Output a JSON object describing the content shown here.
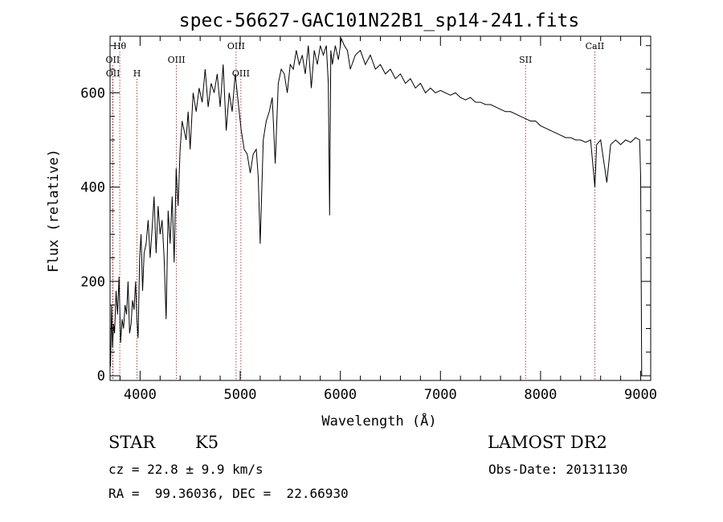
{
  "chart_data": {
    "type": "line",
    "title": "spec-56627-GAC101N22B1_sp14-241.fits",
    "xlabel": "Wavelength (Å)",
    "ylabel": "Flux (relative)",
    "xlim": [
      3700,
      9100
    ],
    "ylim": [
      -10,
      720
    ],
    "xticks": [
      4000,
      5000,
      6000,
      7000,
      8000,
      9000
    ],
    "yticks": [
      0,
      200,
      400,
      600
    ],
    "line_color": "#000000",
    "marker_color": "#8b1a1a",
    "grid": false,
    "series": [
      {
        "x": [
          3705,
          3715,
          3725,
          3735,
          3745,
          3760,
          3775,
          3790,
          3805,
          3820,
          3835,
          3850,
          3865,
          3880,
          3895,
          3910,
          3925,
          3940,
          3955,
          3968,
          3980,
          3995,
          4010,
          4025,
          4040,
          4060,
          4080,
          4100,
          4120,
          4140,
          4160,
          4180,
          4200,
          4220,
          4240,
          4260,
          4280,
          4300,
          4320,
          4340,
          4360,
          4380,
          4400,
          4420,
          4440,
          4460,
          4480,
          4500,
          4530,
          4560,
          4590,
          4620,
          4650,
          4680,
          4710,
          4740,
          4770,
          4800,
          4830,
          4860,
          4890,
          4920,
          4950,
          4980,
          5010,
          5040,
          5070,
          5100,
          5130,
          5160,
          5180,
          5200,
          5230,
          5260,
          5290,
          5320,
          5350,
          5380,
          5410,
          5440,
          5470,
          5500,
          5530,
          5560,
          5590,
          5620,
          5650,
          5680,
          5710,
          5740,
          5770,
          5800,
          5830,
          5860,
          5880,
          5893,
          5905,
          5920,
          5950,
          5980,
          6010,
          6040,
          6070,
          6100,
          6150,
          6200,
          6250,
          6300,
          6350,
          6400,
          6450,
          6500,
          6550,
          6600,
          6650,
          6700,
          6750,
          6800,
          6850,
          6900,
          6950,
          7000,
          7050,
          7100,
          7150,
          7200,
          7250,
          7300,
          7350,
          7400,
          7450,
          7500,
          7550,
          7600,
          7650,
          7700,
          7750,
          7800,
          7850,
          7900,
          7950,
          8000,
          8050,
          8100,
          8150,
          8200,
          8250,
          8300,
          8350,
          8400,
          8450,
          8500,
          8542,
          8560,
          8600,
          8662,
          8700,
          8750,
          8800,
          8850,
          8900,
          8950,
          8990,
          9000,
          9010
        ],
        "y": [
          20,
          150,
          60,
          110,
          90,
          180,
          130,
          210,
          70,
          120,
          100,
          150,
          130,
          200,
          90,
          110,
          160,
          140,
          200,
          120,
          80,
          250,
          300,
          180,
          260,
          280,
          330,
          250,
          310,
          380,
          260,
          360,
          300,
          330,
          250,
          120,
          350,
          280,
          380,
          240,
          440,
          360,
          480,
          540,
          520,
          500,
          560,
          480,
          600,
          560,
          610,
          580,
          650,
          570,
          620,
          600,
          640,
          570,
          660,
          520,
          600,
          560,
          640,
          580,
          520,
          480,
          470,
          430,
          470,
          480,
          420,
          280,
          500,
          540,
          560,
          590,
          450,
          620,
          650,
          640,
          600,
          660,
          650,
          690,
          660,
          680,
          640,
          700,
          610,
          690,
          660,
          700,
          680,
          700,
          620,
          340,
          690,
          660,
          700,
          670,
          715,
          700,
          690,
          650,
          680,
          690,
          660,
          680,
          650,
          660,
          640,
          650,
          630,
          640,
          620,
          630,
          610,
          620,
          600,
          610,
          600,
          605,
          600,
          595,
          600,
          590,
          585,
          590,
          580,
          580,
          575,
          575,
          570,
          565,
          560,
          560,
          555,
          550,
          545,
          540,
          540,
          530,
          525,
          520,
          515,
          510,
          505,
          505,
          500,
          500,
          495,
          500,
          400,
          490,
          500,
          410,
          490,
          500,
          490,
          500,
          495,
          505,
          500,
          420,
          0
        ]
      }
    ],
    "line_markers": [
      {
        "label": "Hθ",
        "x": 3797,
        "row": 0
      },
      {
        "label": "OII",
        "x": 3727,
        "row": 1
      },
      {
        "label": "OII",
        "x": 3729,
        "row": 2
      },
      {
        "label": "H",
        "x": 3969,
        "row": 2
      },
      {
        "label": "OIII",
        "x": 4363,
        "row": 1
      },
      {
        "label": "OIII",
        "x": 4959,
        "row": 0
      },
      {
        "label": "OIII",
        "x": 5007,
        "row": 2
      },
      {
        "label": "SII",
        "x": 7850,
        "row": 1
      },
      {
        "label": "CaII",
        "x": 8542,
        "row": 0
      }
    ]
  },
  "info": {
    "object_class": "STAR",
    "subclass": "K5",
    "survey": "LAMOST DR2",
    "cz": "cz = 22.8 ± 9.9 km/s",
    "obs_date": "Obs-Date: 20131130",
    "coords": "RA =  99.36036, DEC =  22.66930"
  }
}
